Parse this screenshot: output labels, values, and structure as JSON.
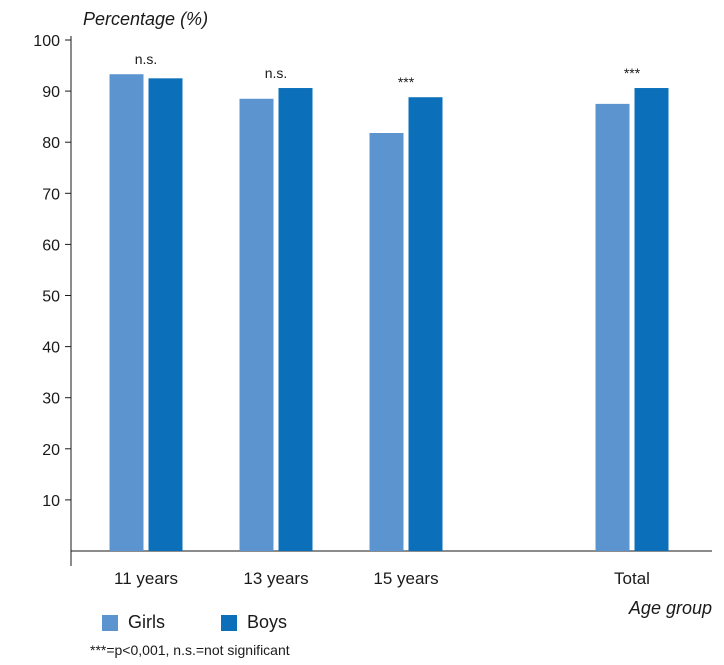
{
  "chart_data": {
    "type": "bar",
    "ylabel": "Percentage (%)",
    "xlabel": "Age group",
    "ylim": [
      0,
      100
    ],
    "yticks": [
      10,
      20,
      30,
      40,
      50,
      60,
      70,
      80,
      90,
      100
    ],
    "categories": [
      "11 years",
      "13 years",
      "15 years",
      "Total"
    ],
    "series": [
      {
        "name": "Girls",
        "color": "#5b94cf",
        "values": [
          93.3,
          88.5,
          81.8,
          87.5
        ]
      },
      {
        "name": "Boys",
        "color": "#0b70b9",
        "values": [
          92.5,
          90.6,
          88.8,
          90.6
        ]
      }
    ],
    "annotations": [
      "n.s.",
      "n.s.",
      "***",
      "***"
    ],
    "legend_position": "bottom-left",
    "grid": false
  },
  "footnote": "***=p<0,001, n.s.=not significant"
}
